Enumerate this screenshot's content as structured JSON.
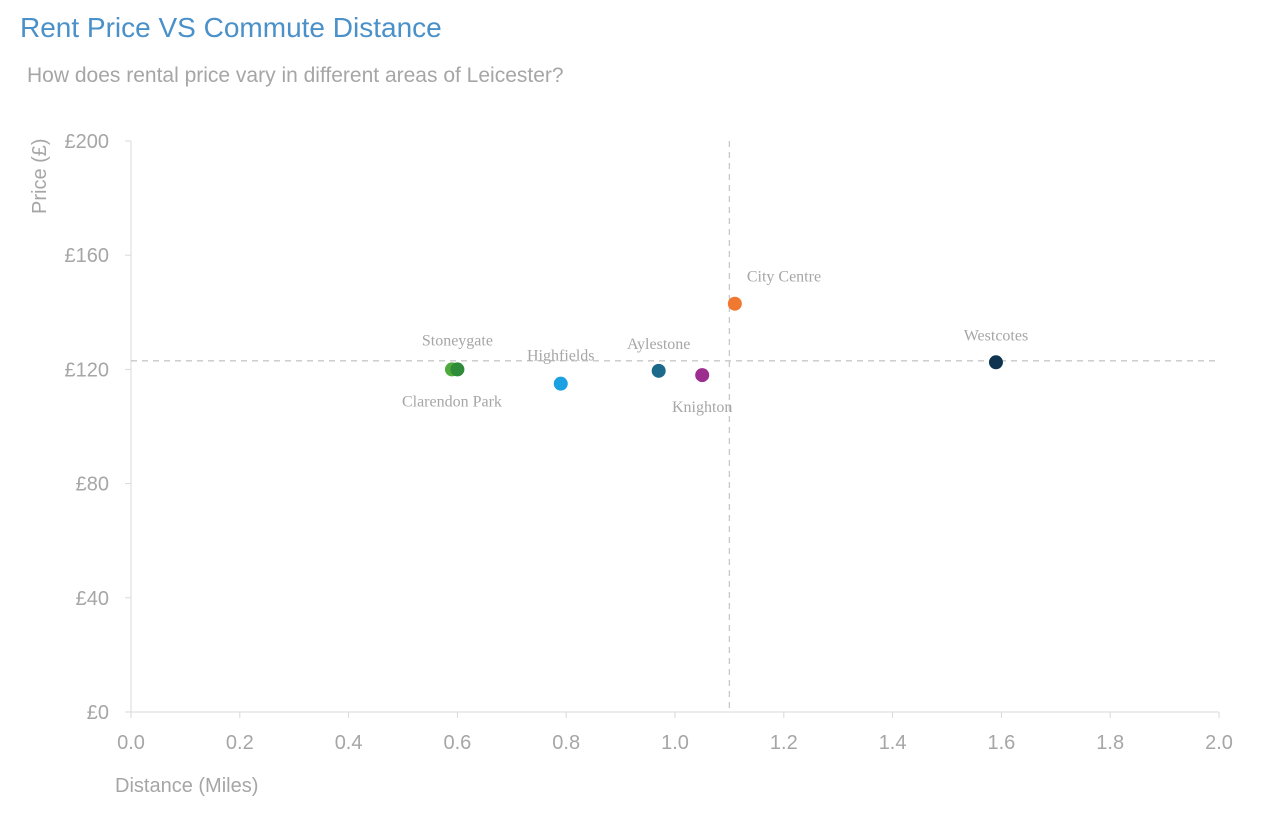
{
  "chart_data": {
    "type": "scatter",
    "title": "Rent Price VS Commute Distance",
    "subtitle": "How does rental price vary in different areas of Leicester?",
    "xlabel": "Distance (Miles)",
    "ylabel": "Price (£)",
    "xlim": [
      0,
      2
    ],
    "ylim": [
      0,
      200
    ],
    "x_ticks": [
      "0.0",
      "0.2",
      "0.4",
      "0.6",
      "0.8",
      "1.0",
      "1.2",
      "1.4",
      "1.6",
      "1.8",
      "2.0"
    ],
    "y_ticks": [
      "£0",
      "£40",
      "£80",
      "£120",
      "£160",
      "£200"
    ],
    "grid": false,
    "legend": "none",
    "reference_lines": {
      "x": 1.1,
      "y": 123
    },
    "points": [
      {
        "label": "Stoneygate",
        "x": 0.6,
        "y": 120,
        "color": "#2E8B3A",
        "label_position": "above"
      },
      {
        "label": "Clarendon Park",
        "x": 0.59,
        "y": 120,
        "color": "#4EAA3A",
        "label_position": "below"
      },
      {
        "label": "Highfields",
        "x": 0.79,
        "y": 115,
        "color": "#1BA1E2",
        "label_position": "above"
      },
      {
        "label": "Aylestone",
        "x": 0.97,
        "y": 119.5,
        "color": "#1B6A8C",
        "label_position": "above"
      },
      {
        "label": "Knighton",
        "x": 1.05,
        "y": 118,
        "color": "#9C2E8F",
        "label_position": "below"
      },
      {
        "label": "City Centre",
        "x": 1.11,
        "y": 143,
        "color": "#F07830",
        "label_position": "above-right"
      },
      {
        "label": "Westcotes",
        "x": 1.59,
        "y": 122.5,
        "color": "#0F3450",
        "label_position": "above"
      }
    ]
  }
}
